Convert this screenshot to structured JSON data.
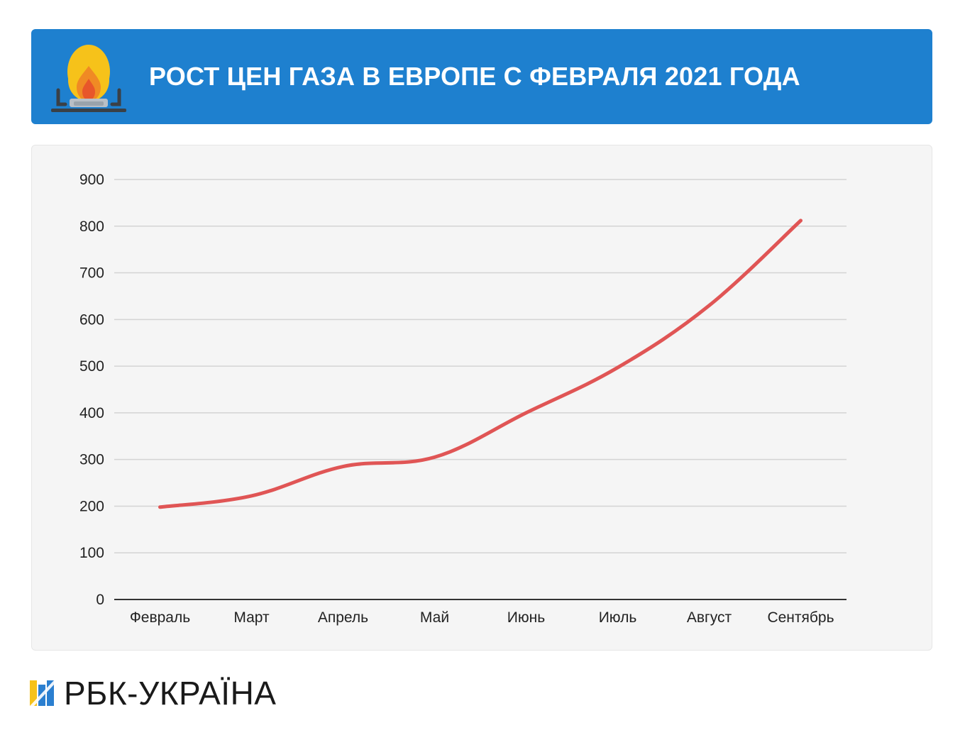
{
  "header": {
    "title": "РОСТ ЦЕН ГАЗА В ЕВРОПЕ С ФЕВРАЛЯ 2021 ГОДА",
    "icon": "gas-burner-flame-icon",
    "background_color": "#1e80cf"
  },
  "chart_data": {
    "type": "line",
    "title": "РОСТ ЦЕН ГАЗА В ЕВРОПЕ С ФЕВРАЛЯ 2021 ГОДА",
    "xlabel": "",
    "ylabel": "",
    "categories": [
      "Февраль",
      "Март",
      "Апрель",
      "Май",
      "Июнь",
      "Июль",
      "Август",
      "Сентябрь"
    ],
    "series": [
      {
        "values": [
          198,
          222,
          285,
          305,
          400,
          497,
          630,
          812
        ],
        "color": "#e05555"
      }
    ],
    "ylim": [
      0,
      900
    ],
    "yticks": [
      0,
      100,
      200,
      300,
      400,
      500,
      600,
      700,
      800,
      900
    ],
    "grid": true,
    "legend": "none"
  },
  "footer": {
    "logo_text": "РБК-УКРАЇНА",
    "logo_icon": "rbc-ukraina-logo-icon"
  }
}
